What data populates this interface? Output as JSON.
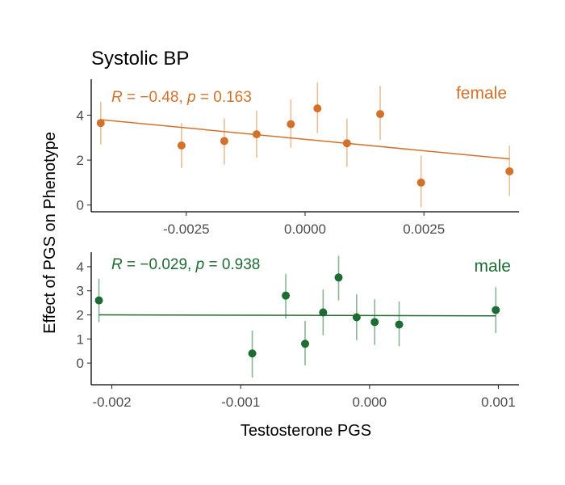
{
  "chart_data": {
    "type": "scatter",
    "title": "Systolic BP",
    "xlabel": "Testosterone PGS",
    "ylabel": "Effect of PGS on Phenotype",
    "grid": false,
    "panels": [
      {
        "name": "female",
        "color": "#D2722A",
        "error_color": "#E8BF97",
        "annotation": {
          "r_label": "R",
          "r_text": " = −0.48, ",
          "p_label": "p",
          "p_text": " = 0.163"
        },
        "xlim": [
          -0.0045,
          0.0045
        ],
        "ylim": [
          -0.3,
          5.6
        ],
        "xticks": [
          {
            "value": -0.0025,
            "label": "-0.0025"
          },
          {
            "value": 0.0,
            "label": "0.0000"
          },
          {
            "value": 0.0025,
            "label": "0.0025"
          }
        ],
        "yticks": [
          {
            "value": 0,
            "label": "0"
          },
          {
            "value": 2,
            "label": "2"
          },
          {
            "value": 4,
            "label": "4"
          }
        ],
        "points": [
          {
            "x": -0.0043,
            "y": 3.65,
            "lo": 2.7,
            "hi": 4.6
          },
          {
            "x": -0.0026,
            "y": 2.65,
            "lo": 1.65,
            "hi": 3.65
          },
          {
            "x": -0.0017,
            "y": 2.85,
            "lo": 1.8,
            "hi": 3.85
          },
          {
            "x": -0.00102,
            "y": 3.15,
            "lo": 2.1,
            "hi": 4.2
          },
          {
            "x": -0.0003,
            "y": 3.6,
            "lo": 2.55,
            "hi": 4.7
          },
          {
            "x": 0.00026,
            "y": 4.3,
            "lo": 3.2,
            "hi": 5.45
          },
          {
            "x": 0.00088,
            "y": 2.75,
            "lo": 1.7,
            "hi": 3.85
          },
          {
            "x": 0.00158,
            "y": 4.05,
            "lo": 2.9,
            "hi": 5.3
          },
          {
            "x": 0.00244,
            "y": 1.0,
            "lo": -0.1,
            "hi": 2.2
          },
          {
            "x": 0.0043,
            "y": 1.5,
            "lo": 0.4,
            "hi": 2.65
          }
        ],
        "fit": {
          "x": [
            -0.0043,
            0.0043
          ],
          "y": [
            3.8,
            2.05
          ]
        }
      },
      {
        "name": "male",
        "color": "#1E6B33",
        "error_color": "#8BB594",
        "annotation": {
          "r_label": "R",
          "r_text": " = −0.029, ",
          "p_label": "p",
          "p_text": " = 0.938"
        },
        "xlim": [
          -0.00216,
          0.00116
        ],
        "ylim": [
          -0.9,
          4.6
        ],
        "xticks": [
          {
            "value": -0.002,
            "label": "-0.002"
          },
          {
            "value": -0.001,
            "label": "-0.001"
          },
          {
            "value": 0.0,
            "label": "0.000"
          },
          {
            "value": 0.001,
            "label": "0.001"
          }
        ],
        "yticks": [
          {
            "value": 0,
            "label": "0"
          },
          {
            "value": 1,
            "label": "1"
          },
          {
            "value": 2,
            "label": "2"
          },
          {
            "value": 3,
            "label": "3"
          },
          {
            "value": 4,
            "label": "4"
          }
        ],
        "points": [
          {
            "x": -0.0021,
            "y": 2.6,
            "lo": 1.7,
            "hi": 3.5
          },
          {
            "x": -0.00091,
            "y": 0.4,
            "lo": -0.6,
            "hi": 1.35
          },
          {
            "x": -0.00065,
            "y": 2.8,
            "lo": 1.85,
            "hi": 3.7
          },
          {
            "x": -0.0005,
            "y": 0.8,
            "lo": -0.1,
            "hi": 1.75
          },
          {
            "x": -0.00036,
            "y": 2.1,
            "lo": 1.15,
            "hi": 3.05
          },
          {
            "x": -0.00024,
            "y": 3.55,
            "lo": 2.6,
            "hi": 4.45
          },
          {
            "x": -0.0001,
            "y": 1.9,
            "lo": 0.95,
            "hi": 2.85
          },
          {
            "x": 4e-05,
            "y": 1.7,
            "lo": 0.75,
            "hi": 2.65
          },
          {
            "x": 0.00023,
            "y": 1.6,
            "lo": 0.7,
            "hi": 2.55
          },
          {
            "x": 0.00098,
            "y": 2.2,
            "lo": 1.25,
            "hi": 3.15
          }
        ],
        "fit": {
          "x": [
            -0.0021,
            0.00098
          ],
          "y": [
            2.0,
            1.96
          ]
        }
      }
    ]
  }
}
